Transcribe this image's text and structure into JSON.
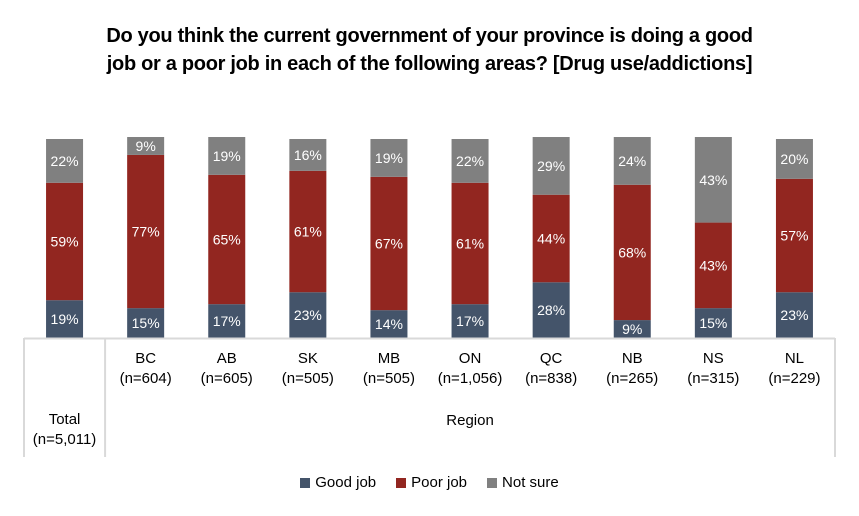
{
  "chart_data": {
    "type": "bar",
    "stacked": true,
    "title_lines": [
      "Do you think the current government of your province is doing a good",
      "job or a poor job in each of the following areas?  [Drug use/addictions]"
    ],
    "categories": [
      {
        "name": "Total",
        "n": "(n=5,011)",
        "group": "Total"
      },
      {
        "name": "BC",
        "n": "(n=604)",
        "group": "Region"
      },
      {
        "name": "AB",
        "n": "(n=605)",
        "group": "Region"
      },
      {
        "name": "SK",
        "n": "(n=505)",
        "group": "Region"
      },
      {
        "name": "MB",
        "n": "(n=505)",
        "group": "Region"
      },
      {
        "name": "ON",
        "n": "(n=1,056)",
        "group": "Region"
      },
      {
        "name": "QC",
        "n": "(n=838)",
        "group": "Region"
      },
      {
        "name": "NB",
        "n": "(n=265)",
        "group": "Region"
      },
      {
        "name": "NS",
        "n": "(n=315)",
        "group": "Region"
      },
      {
        "name": "NL",
        "n": "(n=229)",
        "group": "Region"
      }
    ],
    "group_label": "Region",
    "series": [
      {
        "name": "Good job",
        "color": "#44546A",
        "values": [
          19,
          15,
          17,
          23,
          14,
          17,
          28,
          9,
          15,
          23
        ]
      },
      {
        "name": "Poor job",
        "color": "#922620",
        "values": [
          59,
          77,
          65,
          61,
          67,
          61,
          44,
          68,
          43,
          57
        ]
      },
      {
        "name": "Not sure",
        "color": "#808080",
        "values": [
          22,
          9,
          19,
          16,
          19,
          22,
          29,
          24,
          43,
          20
        ]
      }
    ],
    "value_suffix": "%",
    "ylim": [
      0,
      100
    ],
    "grid": false,
    "legend_position": "bottom"
  }
}
